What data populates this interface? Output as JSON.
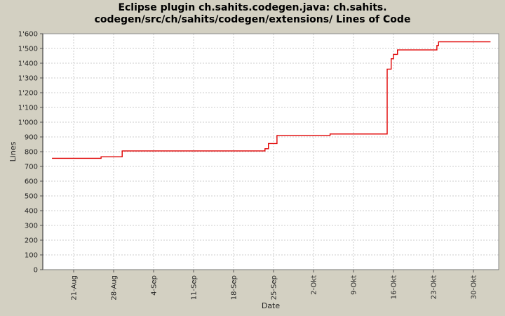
{
  "title": {
    "line1": "Eclipse plugin ch.sahits.codegen.java: ch.sahits.",
    "line2": "codegen/src/ch/sahits/codegen/extensions/ Lines of Code"
  },
  "colors": {
    "background": "#d3d0c2",
    "plot_background": "#ffffff",
    "plot_border": "#8a8a8a",
    "gridline": "#cccccc",
    "series_line": "#e00000",
    "tick_label": "#222222",
    "axis_title": "#222222"
  },
  "chart_data": {
    "type": "line",
    "step": "after",
    "grid": true,
    "legend": "none",
    "title": "Eclipse plugin ch.sahits.codegen.java: ch.sahits.codegen/src/ch/sahits/codegen/extensions/ Lines of Code",
    "xlabel": "Date",
    "ylabel": "Lines",
    "ylim": [
      0,
      1600
    ],
    "x_domain_days": [
      -5.4,
      74.4
    ],
    "x_ticks": [
      {
        "label": "21-Aug",
        "day": 0
      },
      {
        "label": "28-Aug",
        "day": 7
      },
      {
        "label": "4-Sep",
        "day": 14
      },
      {
        "label": "11-Sep",
        "day": 21
      },
      {
        "label": "18-Sep",
        "day": 28
      },
      {
        "label": "25-Sep",
        "day": 35
      },
      {
        "label": "2-Okt",
        "day": 42
      },
      {
        "label": "9-Okt",
        "day": 49
      },
      {
        "label": "16-Okt",
        "day": 56
      },
      {
        "label": "23-Okt",
        "day": 63
      },
      {
        "label": "30-Okt",
        "day": 70
      }
    ],
    "y_ticks": [
      {
        "label": "0",
        "value": 0
      },
      {
        "label": "100",
        "value": 100
      },
      {
        "label": "200",
        "value": 200
      },
      {
        "label": "300",
        "value": 300
      },
      {
        "label": "400",
        "value": 400
      },
      {
        "label": "500",
        "value": 500
      },
      {
        "label": "600",
        "value": 600
      },
      {
        "label": "700",
        "value": 700
      },
      {
        "label": "800",
        "value": 800
      },
      {
        "label": "900",
        "value": 900
      },
      {
        "label": "1'000",
        "value": 1000
      },
      {
        "label": "1'100",
        "value": 1100
      },
      {
        "label": "1'200",
        "value": 1200
      },
      {
        "label": "1'300",
        "value": 1300
      },
      {
        "label": "1'400",
        "value": 1400
      },
      {
        "label": "1'500",
        "value": 1500
      },
      {
        "label": "1'600",
        "value": 1600
      }
    ],
    "series": [
      {
        "name": "Lines of Code",
        "color": "#e00000",
        "points": [
          {
            "date": "17-Aug",
            "day": -3.8,
            "value": 755
          },
          {
            "date": "26-Aug",
            "day": 4.8,
            "value": 765
          },
          {
            "date": "30-Aug",
            "day": 8.5,
            "value": 805
          },
          {
            "date": "23-Sep",
            "day": 33.5,
            "value": 820
          },
          {
            "date": "24-Sep",
            "day": 34.1,
            "value": 855
          },
          {
            "date": "26-Sep",
            "day": 35.6,
            "value": 910
          },
          {
            "date": "5-Okt",
            "day": 44.9,
            "value": 920
          },
          {
            "date": "15-Okt",
            "day": 54.9,
            "value": 1360
          },
          {
            "date": "16-Okt",
            "day": 55.6,
            "value": 1430
          },
          {
            "date": "16-Okt",
            "day": 56.0,
            "value": 1460
          },
          {
            "date": "17-Okt",
            "day": 56.7,
            "value": 1490
          },
          {
            "date": "24-Okt",
            "day": 63.6,
            "value": 1520
          },
          {
            "date": "24-Okt",
            "day": 63.9,
            "value": 1545
          },
          {
            "date": "2-Nov",
            "day": 73.0,
            "value": 1545
          }
        ]
      }
    ]
  }
}
